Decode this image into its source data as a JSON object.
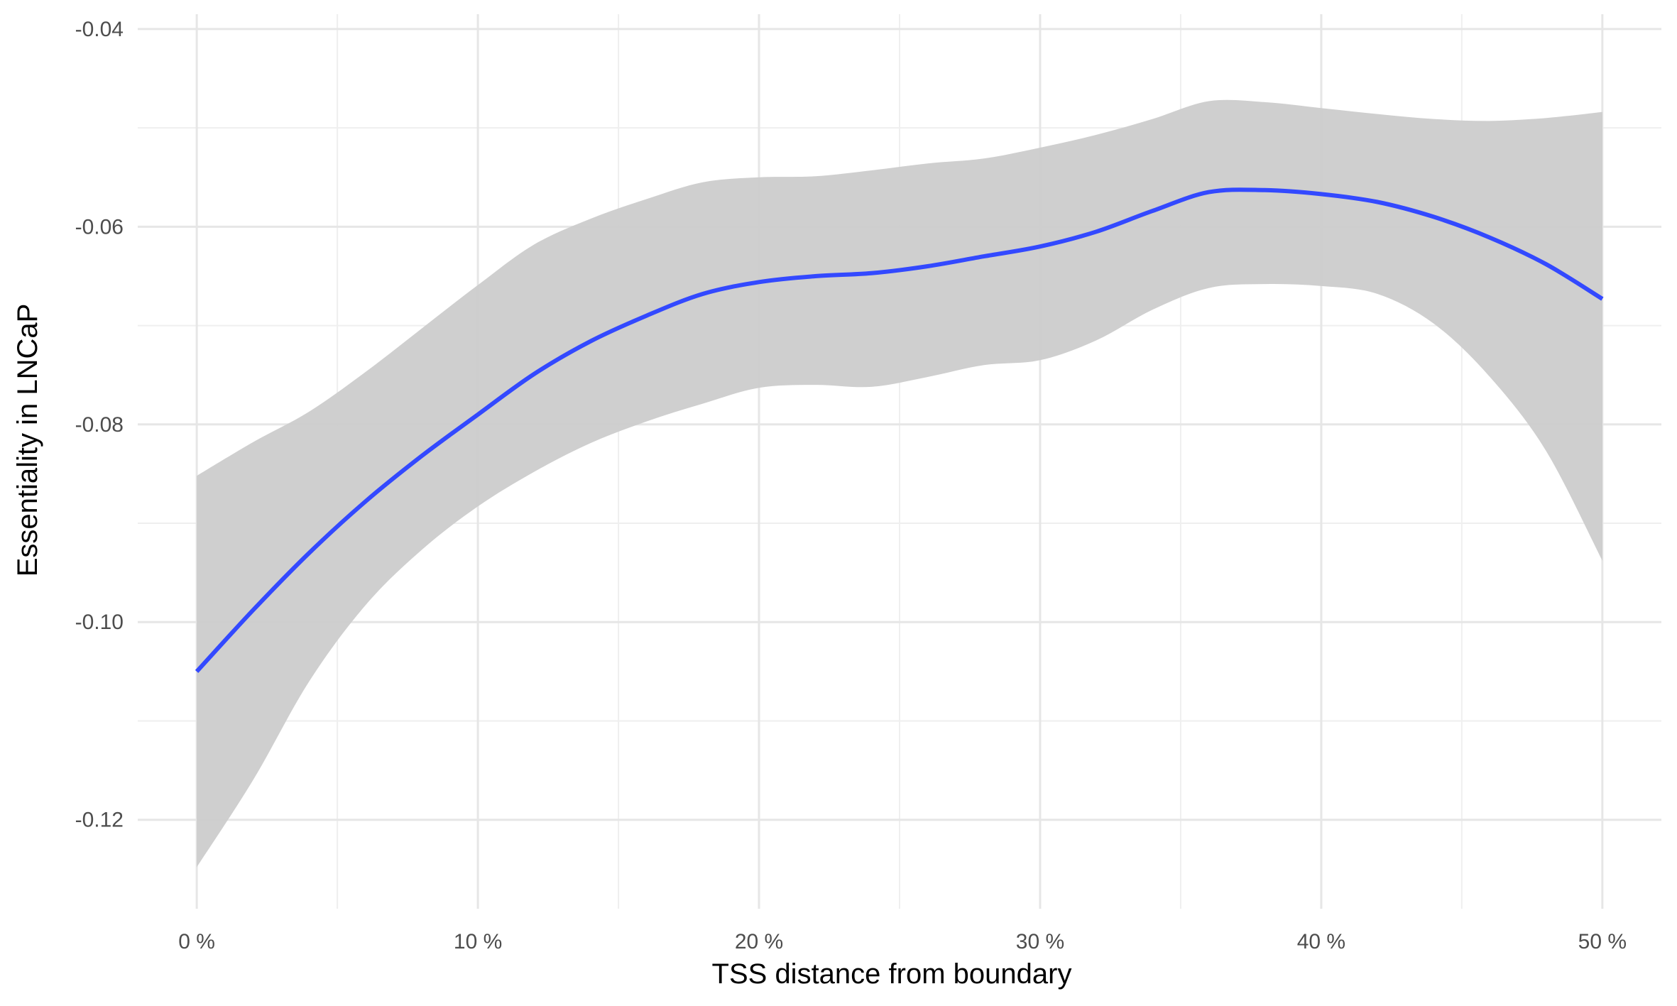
{
  "chart_data": {
    "type": "line",
    "title": "",
    "xlabel": "TSS distance from boundary",
    "ylabel": "Essentiality in LNCaP",
    "xlim": [
      -2.1,
      52.1
    ],
    "ylim": [
      -0.129,
      -0.0385
    ],
    "x_ticks": [
      0,
      10,
      20,
      30,
      40,
      50
    ],
    "x_tick_labels": [
      "0 %",
      "10 %",
      "20 %",
      "30 %",
      "40 %",
      "50 %"
    ],
    "y_ticks": [
      -0.12,
      -0.1,
      -0.08,
      -0.06,
      -0.04
    ],
    "y_tick_labels": [
      "-0.12",
      "-0.10",
      "-0.08",
      "-0.06",
      "-0.04"
    ],
    "grid": true,
    "legend": "none",
    "colors": {
      "line": "#3349ff",
      "band": "#cccccc",
      "grid_major": "#e6e6e6",
      "grid_minor": "#efefef"
    },
    "series": [
      {
        "x": [
          0,
          2,
          4,
          6,
          8,
          10,
          12,
          14,
          16,
          18,
          20,
          22,
          24,
          26,
          28,
          30,
          32,
          34,
          36,
          38,
          40,
          42,
          44,
          46,
          48,
          50
        ],
        "y": [
          -0.105,
          -0.0988,
          -0.093,
          -0.0878,
          -0.0832,
          -0.079,
          -0.0749,
          -0.0716,
          -0.069,
          -0.0668,
          -0.0656,
          -0.065,
          -0.0647,
          -0.064,
          -0.063,
          -0.062,
          -0.0605,
          -0.0584,
          -0.0565,
          -0.0563,
          -0.0567,
          -0.0575,
          -0.059,
          -0.0611,
          -0.0638,
          -0.0673
        ],
        "lower": [
          -0.1248,
          -0.116,
          -0.106,
          -0.0983,
          -0.0927,
          -0.0883,
          -0.0848,
          -0.0819,
          -0.0797,
          -0.0779,
          -0.0763,
          -0.076,
          -0.0762,
          -0.0752,
          -0.074,
          -0.0735,
          -0.0715,
          -0.0684,
          -0.0662,
          -0.0658,
          -0.066,
          -0.0668,
          -0.0698,
          -0.0752,
          -0.0827,
          -0.0938
        ],
        "upper": [
          -0.0852,
          -0.0818,
          -0.0787,
          -0.0747,
          -0.0703,
          -0.0659,
          -0.0618,
          -0.0592,
          -0.0572,
          -0.0555,
          -0.055,
          -0.0549,
          -0.0543,
          -0.0536,
          -0.0531,
          -0.052,
          -0.0507,
          -0.0491,
          -0.0473,
          -0.0474,
          -0.048,
          -0.0486,
          -0.0491,
          -0.0493,
          -0.049,
          -0.0484
        ]
      }
    ]
  }
}
